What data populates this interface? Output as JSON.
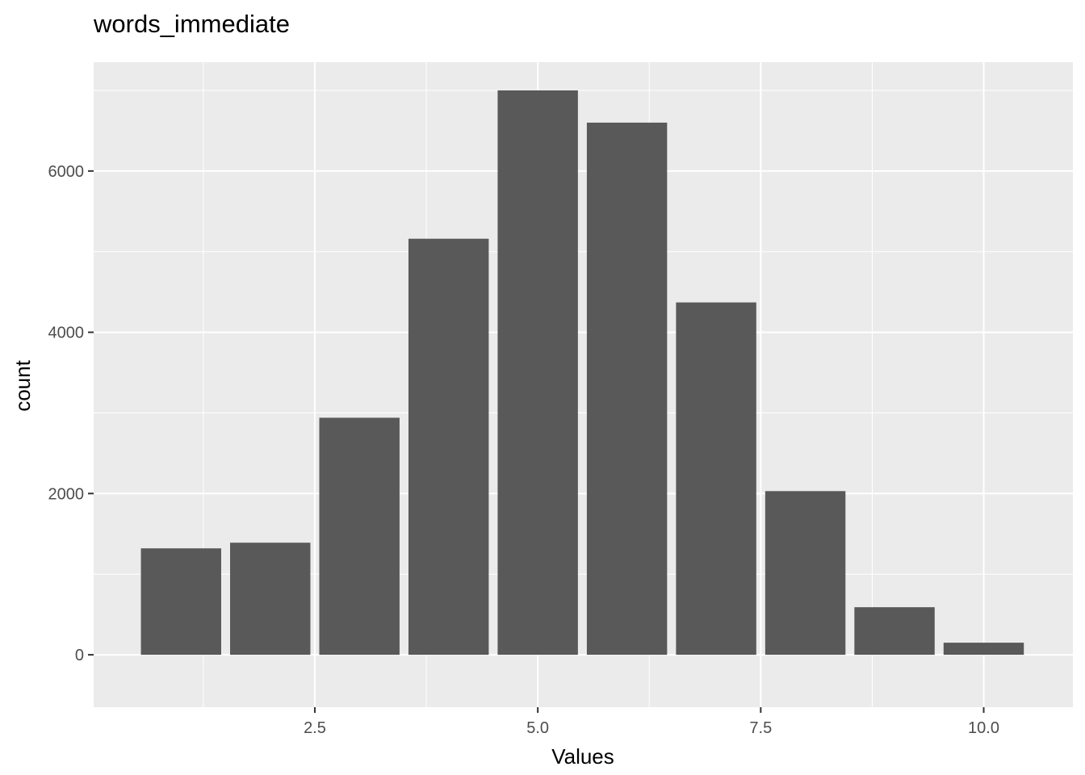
{
  "chart_data": {
    "type": "bar",
    "title": "words_immediate",
    "xlabel": "Values",
    "ylabel": "count",
    "x": [
      1,
      2,
      3,
      4,
      5,
      6,
      7,
      8,
      9,
      10
    ],
    "values": [
      1320,
      1390,
      2940,
      5160,
      7000,
      6600,
      4370,
      2030,
      590,
      150
    ],
    "xlim": [
      0.5,
      10.5
    ],
    "ylim": [
      0,
      7000
    ],
    "x_ticks": [
      2.5,
      5.0,
      7.5,
      10.0
    ],
    "x_tick_labels": [
      "2.5",
      "5.0",
      "7.5",
      "10.0"
    ],
    "y_ticks": [
      0,
      2000,
      4000,
      6000
    ],
    "y_tick_labels": [
      "0",
      "2000",
      "4000",
      "6000"
    ],
    "grid": true,
    "colors": {
      "bar": "#595959",
      "panel": "#ebebeb",
      "grid": "#ffffff",
      "tick_text": "#4d4d4d",
      "tick_mark": "#333333"
    }
  }
}
